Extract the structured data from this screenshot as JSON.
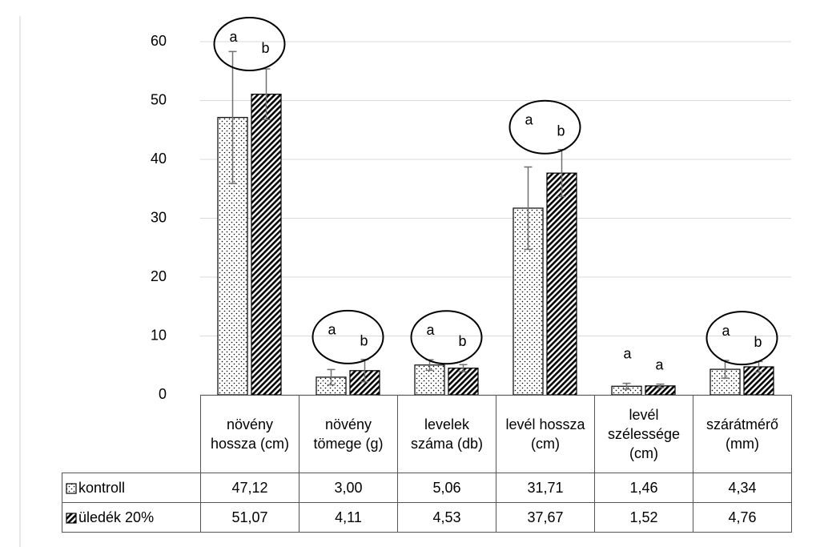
{
  "chart_data": {
    "type": "bar",
    "categories": [
      "növény hossza (cm)",
      "növény tömege (g)",
      "levelek száma (db)",
      "levél hossza (cm)",
      "levél szélessége (cm)",
      "szárátmérő (mm)"
    ],
    "series": [
      {
        "name": "kontroll",
        "color": "#000000",
        "pattern": "dots",
        "values": [
          47.12,
          3.0,
          5.06,
          31.71,
          1.46,
          4.34
        ],
        "value_labels": [
          "47,12",
          "3,00",
          "5,06",
          "31,71",
          "1,46",
          "4,34"
        ],
        "errors": [
          11.2,
          1.3,
          0.9,
          7.0,
          0.5,
          1.5
        ]
      },
      {
        "name": "üledék 20%",
        "color": "#000000",
        "pattern": "diagonal",
        "values": [
          51.07,
          4.11,
          4.53,
          37.67,
          1.52,
          4.76
        ],
        "value_labels": [
          "51,07",
          "4,11",
          "4,53",
          "37,67",
          "1,52",
          "4,76"
        ],
        "errors": [
          4.3,
          1.9,
          0.6,
          4.0,
          0.3,
          0.9
        ]
      }
    ],
    "letters": [
      [
        "a",
        "b"
      ],
      [
        "a",
        "b"
      ],
      [
        "a",
        "b"
      ],
      [
        "a",
        "b"
      ],
      [
        "a",
        "a"
      ],
      [
        "a",
        "b"
      ]
    ],
    "circled": [
      true,
      true,
      true,
      true,
      false,
      true
    ],
    "ylim": [
      0,
      60
    ],
    "yticks": [
      0,
      10,
      20,
      30,
      40,
      50,
      60
    ],
    "grid": true
  }
}
